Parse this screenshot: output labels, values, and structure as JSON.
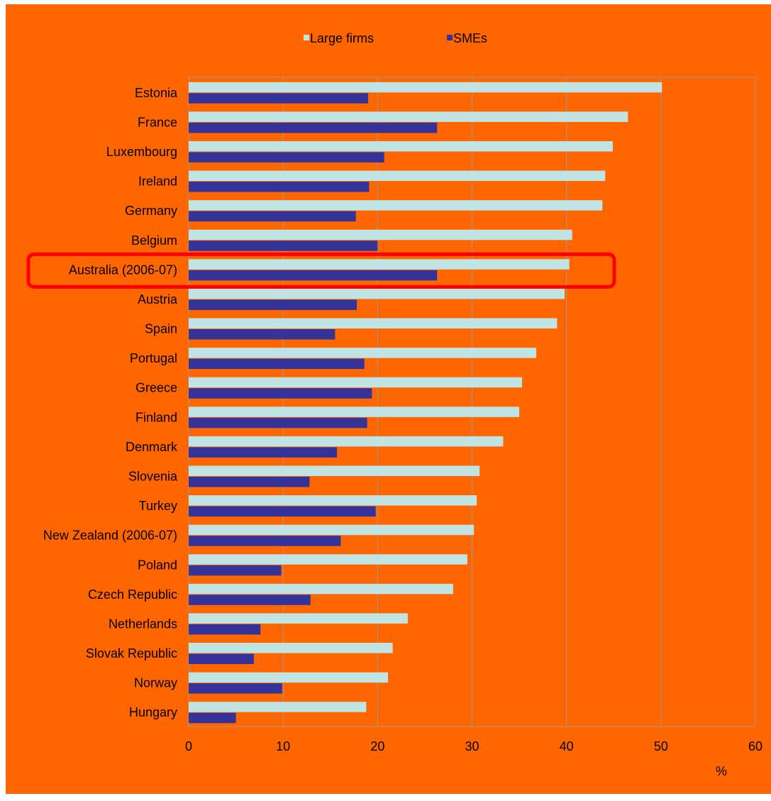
{
  "chart_data": {
    "type": "bar",
    "orientation": "horizontal",
    "categories": [
      "Estonia",
      "France",
      "Luxembourg",
      "Ireland",
      "Germany",
      "Belgium",
      "Australia (2006-07)",
      "Austria",
      "Spain",
      "Portugal",
      "Greece",
      "Finland",
      "Denmark",
      "Slovenia",
      "Turkey",
      "New Zealand (2006-07)",
      "Poland",
      "Czech Republic",
      "Netherlands",
      "Slovak Republic",
      "Norway",
      "Hungary"
    ],
    "series": [
      {
        "name": "Large firms",
        "color": "#c0e4e4",
        "values": [
          50.1,
          46.5,
          44.9,
          44.1,
          43.8,
          40.6,
          40.3,
          39.8,
          39.0,
          36.8,
          35.3,
          35.0,
          33.3,
          30.8,
          30.5,
          30.2,
          29.5,
          28.0,
          23.2,
          21.6,
          21.1,
          18.8
        ]
      },
      {
        "name": "SMEs",
        "color": "#333399",
        "values": [
          19.0,
          26.3,
          20.7,
          19.1,
          17.7,
          20.0,
          26.3,
          17.8,
          15.5,
          18.6,
          19.4,
          18.9,
          15.7,
          12.8,
          19.8,
          16.1,
          9.8,
          12.9,
          7.6,
          6.9,
          9.9,
          5.0
        ]
      }
    ],
    "xlim": [
      0,
      60
    ],
    "xticks": [
      "0",
      "10",
      "20",
      "30",
      "40",
      "50",
      "60"
    ],
    "xlabel": "%",
    "legend_position": "top",
    "grid": "vertical",
    "highlighted_category": "Australia (2006-07)",
    "highlight_color": "#ff0000",
    "background_color": "#ff6600"
  }
}
